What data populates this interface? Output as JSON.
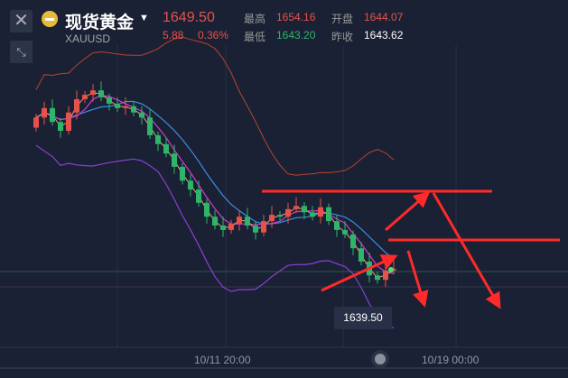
{
  "header": {
    "title": "现货黄金",
    "symbol": "XAUUSD",
    "price": "1649.50",
    "change": "5.88",
    "change_pct": "0.36%",
    "high_label": "最高",
    "high": "1654.16",
    "open_label": "开盘",
    "open": "1644.07",
    "low_label": "最低",
    "low": "1643.20",
    "prev_close_label": "昨收",
    "prev_close": "1643.62",
    "close_icon": "close-icon",
    "shrink_icon": "shrink-icon",
    "coin_icon": "gold-coin-icon"
  },
  "colors": {
    "up": "#e5524b",
    "down": "#2fb56a",
    "annotation": "#ff2a2a",
    "background": "#1a2134"
  },
  "chart_data": {
    "type": "candlestick",
    "x_ticks": [
      "10/11 20:00",
      "10/19 00:00"
    ],
    "price_tag": "1639.50",
    "first_open": 1665.0,
    "closes": [
      1666.6,
      1668.1,
      1665.9,
      1664.5,
      1667.4,
      1669.5,
      1670.2,
      1670.9,
      1669.8,
      1668.8,
      1668.1,
      1668.4,
      1667.4,
      1666.6,
      1663.8,
      1662.4,
      1660.9,
      1658.8,
      1656.6,
      1655.2,
      1653.1,
      1650.9,
      1649.5,
      1648.8,
      1649.8,
      1650.9,
      1649.5,
      1648.4,
      1650.2,
      1651.2,
      1650.9,
      1652.1,
      1652.6,
      1651.6,
      1650.9,
      1652.4,
      1650.2,
      1648.8,
      1648.1,
      1645.9,
      1643.8,
      1641.6,
      1640.9,
      1642.4,
      1642.6
    ],
    "indicators": [
      "moving averages",
      "bollinger bands"
    ]
  }
}
